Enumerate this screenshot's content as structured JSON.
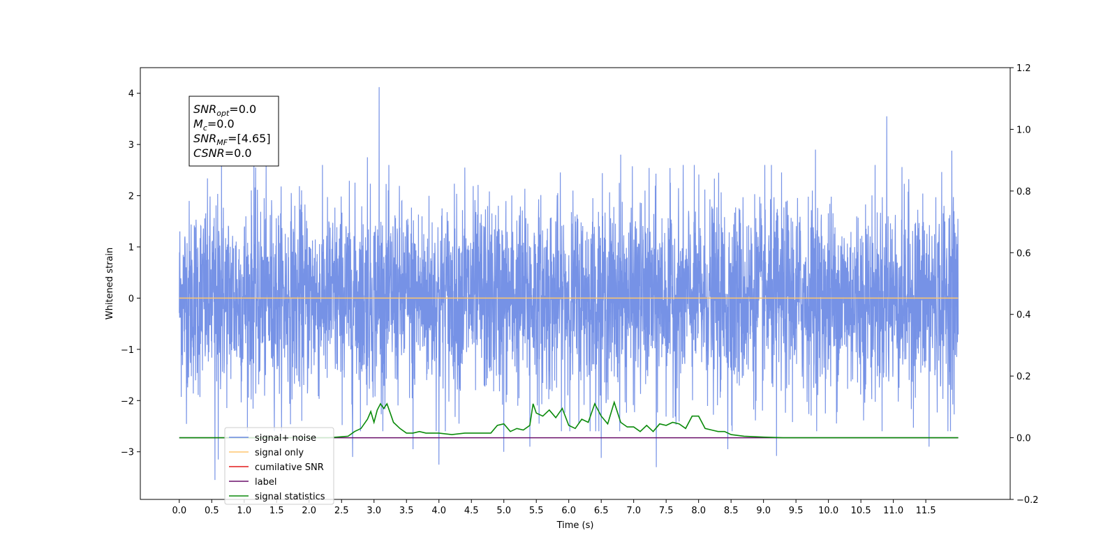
{
  "chart_data": {
    "type": "line",
    "xlabel": "Time (s)",
    "ylabel": "Whitened strain",
    "title": "",
    "xlim": [
      -0.6,
      12.8
    ],
    "ylim": [
      -3.93,
      4.5
    ],
    "y2lim": [
      -0.2,
      1.2
    ],
    "x_ticks": [
      0.0,
      0.5,
      1.0,
      1.5,
      2.0,
      2.5,
      3.0,
      3.5,
      4.0,
      4.5,
      5.0,
      5.5,
      6.0,
      6.5,
      7.0,
      7.5,
      8.0,
      8.5,
      9.0,
      9.5,
      10.0,
      10.5,
      11.0,
      11.5
    ],
    "x_tick_labels": [
      "0.0",
      "0.5",
      "1.0",
      "1.5",
      "2.0",
      "2.5",
      "3.0",
      "3.5",
      "4.0",
      "4.5",
      "5.0",
      "5.5",
      "6.0",
      "6.5",
      "7.0",
      "7.5",
      "8.0",
      "8.5",
      "9.0",
      "9.5",
      "10.0",
      "10.5",
      "11.0",
      "11.5"
    ],
    "y_ticks": [
      -3,
      -2,
      -1,
      0,
      1,
      2,
      3,
      4
    ],
    "y_tick_labels": [
      "−3",
      "−2",
      "−1",
      "0",
      "1",
      "2",
      "3",
      "4"
    ],
    "y2_ticks": [
      -0.2,
      0.0,
      0.2,
      0.4,
      0.6,
      0.8,
      1.0,
      1.2
    ],
    "y2_tick_labels": [
      "−0.2",
      "0.0",
      "0.2",
      "0.4",
      "0.6",
      "0.8",
      "1.0",
      "1.2"
    ],
    "grid": false,
    "legend_position": "lower-left",
    "noise": {
      "x_start": 0.0,
      "x_end": 12.0,
      "typical_amplitude": 1.2,
      "max": 4.12,
      "min": -3.55,
      "spikes": [
        [
          0.55,
          -3.55
        ],
        [
          0.6,
          -3.15
        ],
        [
          3.08,
          4.12
        ],
        [
          2.67,
          -3.1
        ],
        [
          4.0,
          -3.25
        ],
        [
          7.35,
          -3.3
        ],
        [
          10.9,
          3.55
        ],
        [
          11.9,
          2.88
        ],
        [
          6.5,
          -3.12
        ],
        [
          9.2,
          -3.08
        ],
        [
          1.15,
          2.75
        ],
        [
          0.65,
          2.65
        ],
        [
          3.6,
          -2.95
        ],
        [
          5.0,
          -3.0
        ],
        [
          5.4,
          -2.9
        ],
        [
          8.45,
          -2.95
        ],
        [
          4.4,
          2.55
        ],
        [
          6.8,
          2.8
        ],
        [
          9.8,
          2.9
        ],
        [
          2.9,
          2.75
        ],
        [
          11.55,
          -2.9
        ]
      ]
    },
    "series": [
      {
        "name": "signal+ noise",
        "color": "#6a89e4",
        "axis": "left"
      },
      {
        "name": "signal only",
        "color": "#ffc66e",
        "axis": "left",
        "x": [
          0.0,
          12.0
        ],
        "y": [
          0.0,
          0.0
        ]
      },
      {
        "name": "cumilative SNR",
        "color": "#e41a1a",
        "axis": "right",
        "x": [],
        "y": []
      },
      {
        "name": "label",
        "color": "#6a0f6a",
        "axis": "right",
        "x": [
          0.0,
          12.0
        ],
        "y": [
          0.0,
          0.0
        ]
      },
      {
        "name": "signal statistics",
        "color": "#0a8a0a",
        "axis": "right",
        "x": [
          0.0,
          2.3,
          2.5,
          2.6,
          2.7,
          2.8,
          2.9,
          2.95,
          3.0,
          3.05,
          3.1,
          3.15,
          3.2,
          3.25,
          3.3,
          3.4,
          3.5,
          3.6,
          3.7,
          3.8,
          4.0,
          4.2,
          4.4,
          4.6,
          4.8,
          4.9,
          5.0,
          5.1,
          5.2,
          5.3,
          5.4,
          5.45,
          5.5,
          5.6,
          5.7,
          5.8,
          5.9,
          6.0,
          6.1,
          6.2,
          6.3,
          6.4,
          6.5,
          6.6,
          6.7,
          6.8,
          6.9,
          7.0,
          7.1,
          7.2,
          7.3,
          7.4,
          7.5,
          7.6,
          7.7,
          7.8,
          7.9,
          8.0,
          8.1,
          8.2,
          8.3,
          8.4,
          8.5,
          8.7,
          9.0,
          9.3,
          12.0
        ],
        "y": [
          0.0,
          0.0,
          0.003,
          0.005,
          0.02,
          0.03,
          0.06,
          0.085,
          0.05,
          0.09,
          0.11,
          0.095,
          0.11,
          0.08,
          0.05,
          0.03,
          0.015,
          0.015,
          0.02,
          0.015,
          0.015,
          0.01,
          0.015,
          0.015,
          0.015,
          0.04,
          0.045,
          0.02,
          0.03,
          0.025,
          0.04,
          0.11,
          0.08,
          0.07,
          0.09,
          0.065,
          0.095,
          0.04,
          0.03,
          0.06,
          0.05,
          0.11,
          0.07,
          0.045,
          0.115,
          0.05,
          0.035,
          0.035,
          0.02,
          0.04,
          0.02,
          0.045,
          0.04,
          0.05,
          0.045,
          0.03,
          0.07,
          0.07,
          0.03,
          0.025,
          0.02,
          0.02,
          0.01,
          0.005,
          0.002,
          0.0,
          0.0
        ]
      }
    ],
    "info_box": [
      {
        "base": "SNR",
        "sub": "opt",
        "value": "=0.0"
      },
      {
        "base": "M",
        "sub": "c",
        "value": "=0.0"
      },
      {
        "base": "SNR",
        "sub": "MF",
        "value": "=[4.65]"
      },
      {
        "base": "CSNR",
        "sub": "",
        "value": "=0.0"
      }
    ]
  }
}
